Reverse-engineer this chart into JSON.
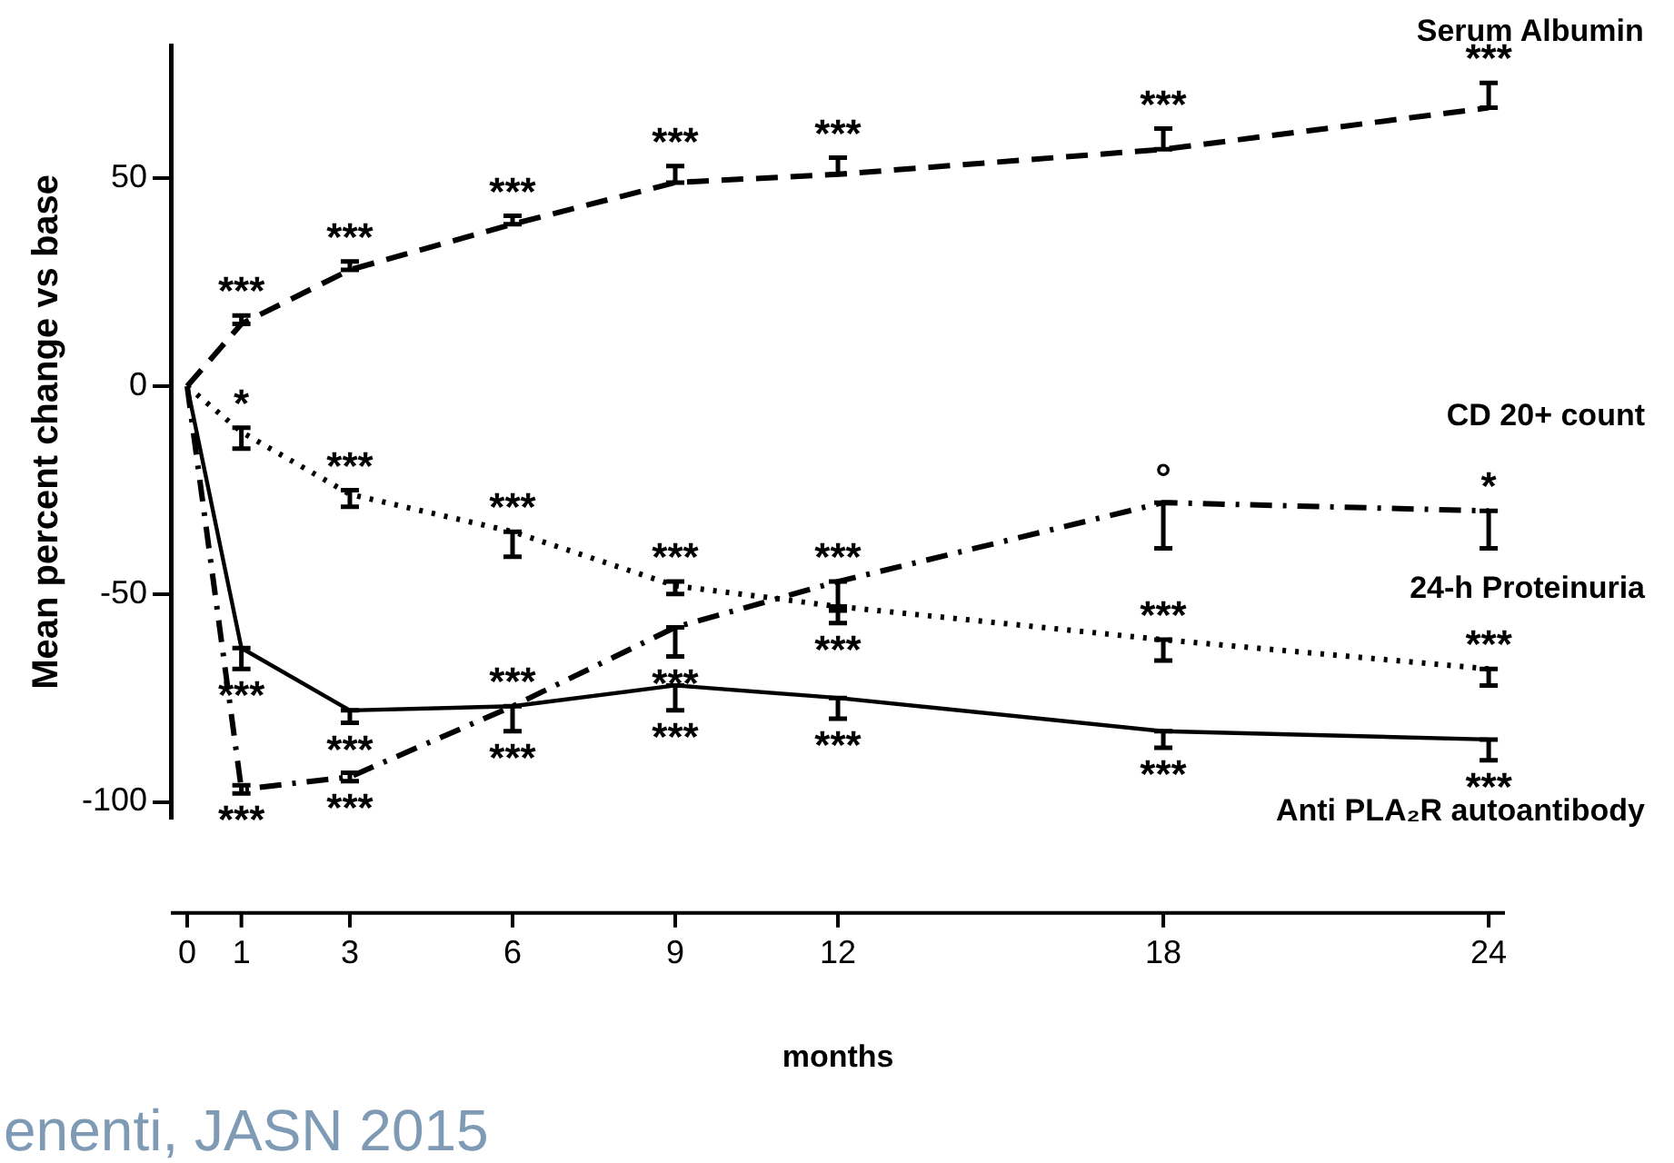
{
  "chart_data": {
    "type": "line",
    "ylabel": "Mean percent change vs base",
    "xlabel": "months",
    "x": [
      0,
      1,
      3,
      6,
      9,
      12,
      18,
      24
    ],
    "xlim": [
      -0.3,
      24.3
    ],
    "xticks": [
      0,
      1,
      3,
      6,
      9,
      12,
      18,
      24
    ],
    "ylim": [
      -104,
      82
    ],
    "yticks": [
      -100,
      -50,
      0,
      50
    ],
    "grid": false,
    "legend": false,
    "marker": "none",
    "series": [
      {
        "name": "Serum Albumin",
        "color": "#000000",
        "line_style": "dashed",
        "values": [
          0,
          15,
          28,
          39,
          49,
          51,
          57,
          67
        ],
        "errors": [
          null,
          [
            15,
            17
          ],
          [
            28,
            30
          ],
          [
            39,
            41
          ],
          [
            49,
            53
          ],
          [
            51,
            55
          ],
          [
            57,
            62
          ],
          [
            67,
            73
          ]
        ]
      },
      {
        "name": "CD 20+ count",
        "color": "#000000",
        "line_style": "dashdot",
        "values": [
          0,
          -97,
          -94,
          -77,
          -58,
          -47,
          -28,
          -30
        ],
        "errors": [
          null,
          [
            -98,
            -96
          ],
          [
            -95,
            -93
          ],
          null,
          [
            -65,
            -58
          ],
          [
            -54,
            -47
          ],
          [
            -39,
            -28
          ],
          [
            -39,
            -30
          ]
        ]
      },
      {
        "name": "24-h Proteinuria",
        "color": "#000000",
        "line_style": "dotted",
        "values": [
          0,
          -11,
          -26,
          -35,
          -48,
          -53,
          -61,
          -68
        ],
        "errors": [
          null,
          [
            -15,
            -10
          ],
          [
            -29,
            -25
          ],
          [
            -41,
            -35
          ],
          [
            -50,
            -47
          ],
          [
            -57,
            -53
          ],
          [
            -66,
            -61
          ],
          [
            -72,
            -68
          ]
        ]
      },
      {
        "name": "Anti PLA₂R autoantibody",
        "color": "#000000",
        "line_style": "solid",
        "values": [
          0,
          -63,
          -78,
          -77,
          -72,
          -75,
          -83,
          -85
        ],
        "errors": [
          null,
          [
            -68,
            -63
          ],
          [
            -81,
            -78
          ],
          [
            -83,
            -77
          ],
          [
            -78,
            -72
          ],
          [
            -80,
            -75
          ],
          [
            -87,
            -83
          ],
          [
            -90,
            -85
          ]
        ]
      }
    ],
    "annotations": [
      {
        "text": "***",
        "x": 1,
        "y": 15
      },
      {
        "text": "***",
        "x": 3,
        "y": 28
      },
      {
        "text": "***",
        "x": 6,
        "y": 39
      },
      {
        "text": "***",
        "x": 9,
        "y": 49
      },
      {
        "text": "***",
        "x": 12,
        "y": 51
      },
      {
        "text": "***",
        "x": 18,
        "y": 57
      },
      {
        "text": "***",
        "x": 24,
        "y": 67
      },
      {
        "text": "*",
        "x": 1,
        "y": -11
      },
      {
        "text": "***",
        "x": 3,
        "y": -26
      },
      {
        "text": "***",
        "x": 6,
        "y": -35
      },
      {
        "text": "***",
        "x": 9,
        "y": -48
      },
      {
        "text": "***",
        "x": 12,
        "y": -53
      },
      {
        "text": "***",
        "x": 18,
        "y": -61
      },
      {
        "text": "***",
        "x": 24,
        "y": -68
      },
      {
        "text": "***",
        "x": 1,
        "y": -97
      },
      {
        "text": "***",
        "x": 3,
        "y": -94
      },
      {
        "text": "***",
        "x": 6,
        "y": -77
      },
      {
        "text": "***",
        "x": 9,
        "y": -58
      },
      {
        "text": "***",
        "x": 12,
        "y": -47
      },
      {
        "text": "°",
        "x": 18,
        "y": -28
      },
      {
        "text": "*",
        "x": 24,
        "y": -30
      },
      {
        "text": "***",
        "x": 1,
        "y": -63
      },
      {
        "text": "***",
        "x": 3,
        "y": -78
      },
      {
        "text": "***",
        "x": 6,
        "y": -77
      },
      {
        "text": "***",
        "x": 9,
        "y": -72
      },
      {
        "text": "***",
        "x": 12,
        "y": -75
      },
      {
        "text": "***",
        "x": 18,
        "y": -83
      },
      {
        "text": "***",
        "x": 24,
        "y": -85
      },
      "enenti, JASN 2015"
    ]
  }
}
